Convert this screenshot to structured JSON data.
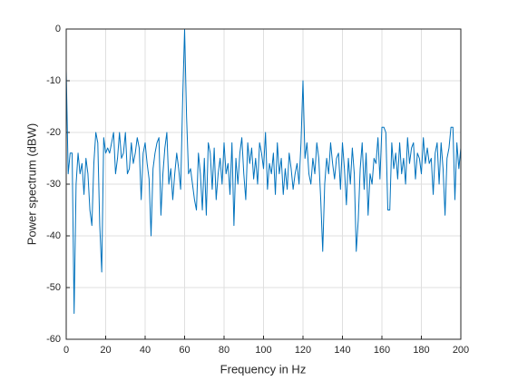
{
  "chart_data": {
    "type": "line",
    "x_label": "Frequency in Hz",
    "y_label": "Power spectrum (dBW)",
    "x": [
      0,
      1,
      2,
      3,
      4,
      5,
      6,
      7,
      8,
      9,
      10,
      11,
      12,
      13,
      14,
      15,
      16,
      17,
      18,
      19,
      20,
      21,
      22,
      23,
      24,
      25,
      26,
      27,
      28,
      29,
      30,
      31,
      32,
      33,
      34,
      35,
      36,
      37,
      38,
      39,
      40,
      41,
      42,
      43,
      44,
      45,
      46,
      47,
      48,
      49,
      50,
      51,
      52,
      53,
      54,
      55,
      56,
      57,
      58,
      59,
      60,
      61,
      62,
      63,
      64,
      65,
      66,
      67,
      68,
      69,
      70,
      71,
      72,
      73,
      74,
      75,
      76,
      77,
      78,
      79,
      80,
      81,
      82,
      83,
      84,
      85,
      86,
      87,
      88,
      89,
      90,
      91,
      92,
      93,
      94,
      95,
      96,
      97,
      98,
      99,
      100,
      101,
      102,
      103,
      104,
      105,
      106,
      107,
      108,
      109,
      110,
      111,
      112,
      113,
      114,
      115,
      116,
      117,
      118,
      119,
      120,
      121,
      122,
      123,
      124,
      125,
      126,
      127,
      128,
      129,
      130,
      131,
      132,
      133,
      134,
      135,
      136,
      137,
      138,
      139,
      140,
      141,
      142,
      143,
      144,
      145,
      146,
      147,
      148,
      149,
      150,
      151,
      152,
      153,
      154,
      155,
      156,
      157,
      158,
      159,
      160,
      161,
      162,
      163,
      164,
      165,
      166,
      167,
      168,
      169,
      170,
      171,
      172,
      173,
      174,
      175,
      176,
      177,
      178,
      179,
      180,
      181,
      182,
      183,
      184,
      185,
      186,
      187,
      188,
      189,
      190,
      191,
      192,
      193,
      194,
      195,
      196,
      197,
      198,
      199,
      200
    ],
    "series": [
      {
        "name": "Power spectrum",
        "color": "#0072bd",
        "values": [
          -8,
          -28,
          -24,
          -24,
          -55,
          -30,
          -24,
          -28,
          -26,
          -32,
          -25,
          -28,
          -35,
          -38,
          -26,
          -20,
          -22,
          -38,
          -47,
          -21,
          -24,
          -23,
          -24,
          -22,
          -20,
          -28,
          -25,
          -20,
          -25,
          -24,
          -20,
          -28,
          -27,
          -22,
          -26,
          -24,
          -21,
          -23,
          -33,
          -24,
          -22,
          -26,
          -29,
          -40,
          -27,
          -24,
          -22,
          -21,
          -36,
          -28,
          -23,
          -20,
          -30,
          -27,
          -33,
          -28,
          -24,
          -27,
          -31,
          -14,
          0,
          -17,
          -28,
          -27,
          -30,
          -33,
          -35,
          -24,
          -28,
          -35,
          -25,
          -36,
          -22,
          -24,
          -31,
          -23,
          -33,
          -28,
          -25,
          -30,
          -22,
          -28,
          -26,
          -32,
          -22,
          -38,
          -25,
          -30,
          -24,
          -21,
          -28,
          -33,
          -22,
          -26,
          -23,
          -29,
          -25,
          -30,
          -22,
          -24,
          -27,
          -20,
          -31,
          -26,
          -28,
          -24,
          -32,
          -22,
          -28,
          -25,
          -32,
          -27,
          -31,
          -24,
          -27,
          -31,
          -28,
          -26,
          -30,
          -22,
          -10,
          -25,
          -22,
          -28,
          -30,
          -25,
          -28,
          -22,
          -25,
          -33,
          -43,
          -30,
          -25,
          -28,
          -22,
          -26,
          -29,
          -25,
          -24,
          -31,
          -22,
          -27,
          -34,
          -25,
          -30,
          -23,
          -28,
          -43,
          -37,
          -27,
          -22,
          -31,
          -24,
          -36,
          -28,
          -30,
          -25,
          -26,
          -21,
          -29,
          -19,
          -19,
          -20,
          -35,
          -35,
          -22,
          -27,
          -24,
          -29,
          -22,
          -28,
          -25,
          -30,
          -21,
          -26,
          -23,
          -22,
          -29,
          -24,
          -25,
          -28,
          -21,
          -26,
          -23,
          -26,
          -25,
          -32,
          -24,
          -22,
          -30,
          -22,
          -27,
          -36,
          -25,
          -23,
          -19,
          -19,
          -33,
          -22,
          -27,
          -23
        ]
      }
    ],
    "xlim": [
      0,
      200
    ],
    "xticks": [
      0,
      20,
      40,
      60,
      80,
      100,
      120,
      140,
      160,
      180,
      200
    ],
    "ylim": [
      -60,
      0
    ],
    "yticks": [
      -60,
      -50,
      -40,
      -30,
      -20,
      -10,
      0
    ],
    "grid": true
  }
}
